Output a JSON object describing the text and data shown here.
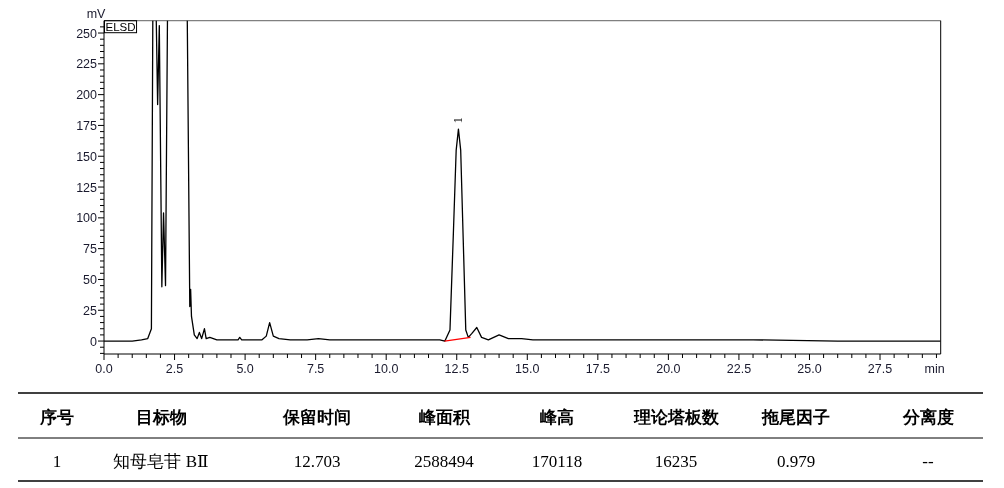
{
  "chart_data": {
    "type": "line",
    "xlabel": "min",
    "ylabel": "mV",
    "xlim": [
      0,
      29.65
    ],
    "ylim": [
      -10.5,
      260
    ],
    "xticks": [
      {
        "value": 0,
        "label": "0.0"
      },
      {
        "value": 0.5,
        "label": null
      },
      {
        "value": 1,
        "label": null
      },
      {
        "value": 1.5,
        "label": null
      },
      {
        "value": 2,
        "label": null
      },
      {
        "value": 2.5,
        "label": "2.5"
      },
      {
        "value": 3,
        "label": null
      },
      {
        "value": 3.5,
        "label": null
      },
      {
        "value": 4,
        "label": null
      },
      {
        "value": 4.5,
        "label": null
      },
      {
        "value": 5,
        "label": "5.0"
      },
      {
        "value": 5.5,
        "label": null
      },
      {
        "value": 6,
        "label": null
      },
      {
        "value": 6.5,
        "label": null
      },
      {
        "value": 7,
        "label": null
      },
      {
        "value": 7.5,
        "label": "7.5"
      },
      {
        "value": 8,
        "label": null
      },
      {
        "value": 8.5,
        "label": null
      },
      {
        "value": 9,
        "label": null
      },
      {
        "value": 9.5,
        "label": null
      },
      {
        "value": 10,
        "label": "10.0"
      },
      {
        "value": 10.5,
        "label": null
      },
      {
        "value": 11,
        "label": null
      },
      {
        "value": 11.5,
        "label": null
      },
      {
        "value": 12,
        "label": null
      },
      {
        "value": 12.5,
        "label": "12.5"
      },
      {
        "value": 13,
        "label": null
      },
      {
        "value": 13.5,
        "label": null
      },
      {
        "value": 14,
        "label": null
      },
      {
        "value": 14.5,
        "label": null
      },
      {
        "value": 15,
        "label": "15.0"
      },
      {
        "value": 15.5,
        "label": null
      },
      {
        "value": 16,
        "label": null
      },
      {
        "value": 16.5,
        "label": null
      },
      {
        "value": 17,
        "label": null
      },
      {
        "value": 17.5,
        "label": "17.5"
      },
      {
        "value": 18,
        "label": null
      },
      {
        "value": 18.5,
        "label": null
      },
      {
        "value": 19,
        "label": null
      },
      {
        "value": 19.5,
        "label": null
      },
      {
        "value": 20,
        "label": "20.0"
      },
      {
        "value": 20.5,
        "label": null
      },
      {
        "value": 21,
        "label": null
      },
      {
        "value": 21.5,
        "label": null
      },
      {
        "value": 22,
        "label": null
      },
      {
        "value": 22.5,
        "label": "22.5"
      },
      {
        "value": 23,
        "label": null
      },
      {
        "value": 23.5,
        "label": null
      },
      {
        "value": 24,
        "label": null
      },
      {
        "value": 24.5,
        "label": null
      },
      {
        "value": 25,
        "label": "25.0"
      },
      {
        "value": 25.5,
        "label": null
      },
      {
        "value": 26,
        "label": null
      },
      {
        "value": 26.5,
        "label": null
      },
      {
        "value": 27,
        "label": null
      },
      {
        "value": 27.5,
        "label": "27.5"
      },
      {
        "value": 28,
        "label": null
      },
      {
        "value": 28.5,
        "label": null
      },
      {
        "value": 29,
        "label": null
      },
      {
        "value": 29.5,
        "label": null
      }
    ],
    "yticks": [
      {
        "value": -10,
        "label": null
      },
      {
        "value": -5,
        "label": null
      },
      0,
      {
        "value": 5,
        "label": null
      },
      {
        "value": 10,
        "label": null
      },
      {
        "value": 15,
        "label": null
      },
      {
        "value": 20,
        "label": null
      },
      25,
      {
        "value": 30,
        "label": null
      },
      {
        "value": 35,
        "label": null
      },
      {
        "value": 40,
        "label": null
      },
      {
        "value": 45,
        "label": null
      },
      50,
      {
        "value": 55,
        "label": null
      },
      {
        "value": 60,
        "label": null
      },
      {
        "value": 65,
        "label": null
      },
      {
        "value": 70,
        "label": null
      },
      75,
      {
        "value": 80,
        "label": null
      },
      {
        "value": 85,
        "label": null
      },
      {
        "value": 90,
        "label": null
      },
      {
        "value": 95,
        "label": null
      },
      100,
      {
        "value": 105,
        "label": null
      },
      {
        "value": 110,
        "label": null
      },
      {
        "value": 115,
        "label": null
      },
      {
        "value": 120,
        "label": null
      },
      125,
      {
        "value": 130,
        "label": null
      },
      {
        "value": 135,
        "label": null
      },
      {
        "value": 140,
        "label": null
      },
      {
        "value": 145,
        "label": null
      },
      150,
      {
        "value": 155,
        "label": null
      },
      {
        "value": 160,
        "label": null
      },
      {
        "value": 165,
        "label": null
      },
      {
        "value": 170,
        "label": null
      },
      175,
      {
        "value": 180,
        "label": null
      },
      {
        "value": 185,
        "label": null
      },
      {
        "value": 190,
        "label": null
      },
      {
        "value": 195,
        "label": null
      },
      200,
      {
        "value": 205,
        "label": null
      },
      {
        "value": 210,
        "label": null
      },
      {
        "value": 215,
        "label": null
      },
      {
        "value": 220,
        "label": null
      },
      225,
      {
        "value": 230,
        "label": null
      },
      {
        "value": 235,
        "label": null
      },
      {
        "value": 240,
        "label": null
      },
      {
        "value": 245,
        "label": null
      },
      250,
      {
        "value": 255,
        "label": null
      }
    ],
    "series": [
      {
        "color": "#000000",
        "x": [
          0,
          1.0,
          1.33,
          1.55,
          1.68,
          1.73,
          1.85,
          1.9,
          1.96,
          2.05,
          2.11,
          2.18,
          2.25,
          2.95,
          3.04,
          3.07,
          3.1,
          3.2,
          3.3,
          3.38,
          3.46,
          3.56,
          3.62,
          3.75,
          4.0,
          4.75,
          4.81,
          4.88,
          5.6,
          5.75,
          5.87,
          6.0,
          6.2,
          6.6,
          7.2,
          7.6,
          8.0,
          9.0,
          10.5,
          11.2,
          11.55,
          11.9,
          12.08,
          12.26,
          12.38,
          12.48,
          12.56,
          12.64,
          12.73,
          12.82,
          12.91,
          13.03,
          13.21,
          13.38,
          13.62,
          14.0,
          14.33,
          14.8,
          15.2,
          17.0,
          20.0,
          23.0,
          26.0,
          29.65
        ],
        "values": [
          0,
          0,
          1,
          2,
          10,
          null,
          null,
          192,
          256,
          44,
          104,
          45,
          null,
          null,
          28,
          42,
          20,
          5,
          2,
          7,
          2,
          10,
          2,
          3,
          1,
          1,
          3,
          1,
          1,
          4,
          15,
          4,
          2,
          1,
          1,
          2,
          1,
          1,
          1,
          1,
          1,
          1,
          0,
          9,
          87,
          155,
          172,
          155,
          82,
          9,
          3,
          6,
          11,
          3,
          1,
          5,
          2,
          2,
          1,
          1,
          1,
          1,
          0,
          0
        ]
      },
      {
        "color": "#ff0000",
        "x": [
          12.07,
          12.99
        ],
        "values": [
          0,
          3
        ]
      }
    ],
    "annotations": [
      "ELSD",
      {
        "text": "1",
        "x": 12.56,
        "y": 172
      },
      "序号",
      "目标物",
      "保留时间",
      "峰面积",
      "峰高",
      "理论塔板数",
      "拖尾因子",
      "分离度",
      "1",
      "知母皂苷 BⅡ",
      "12.703",
      "2588494",
      "170118",
      "16235",
      "0.979",
      "--"
    ]
  }
}
